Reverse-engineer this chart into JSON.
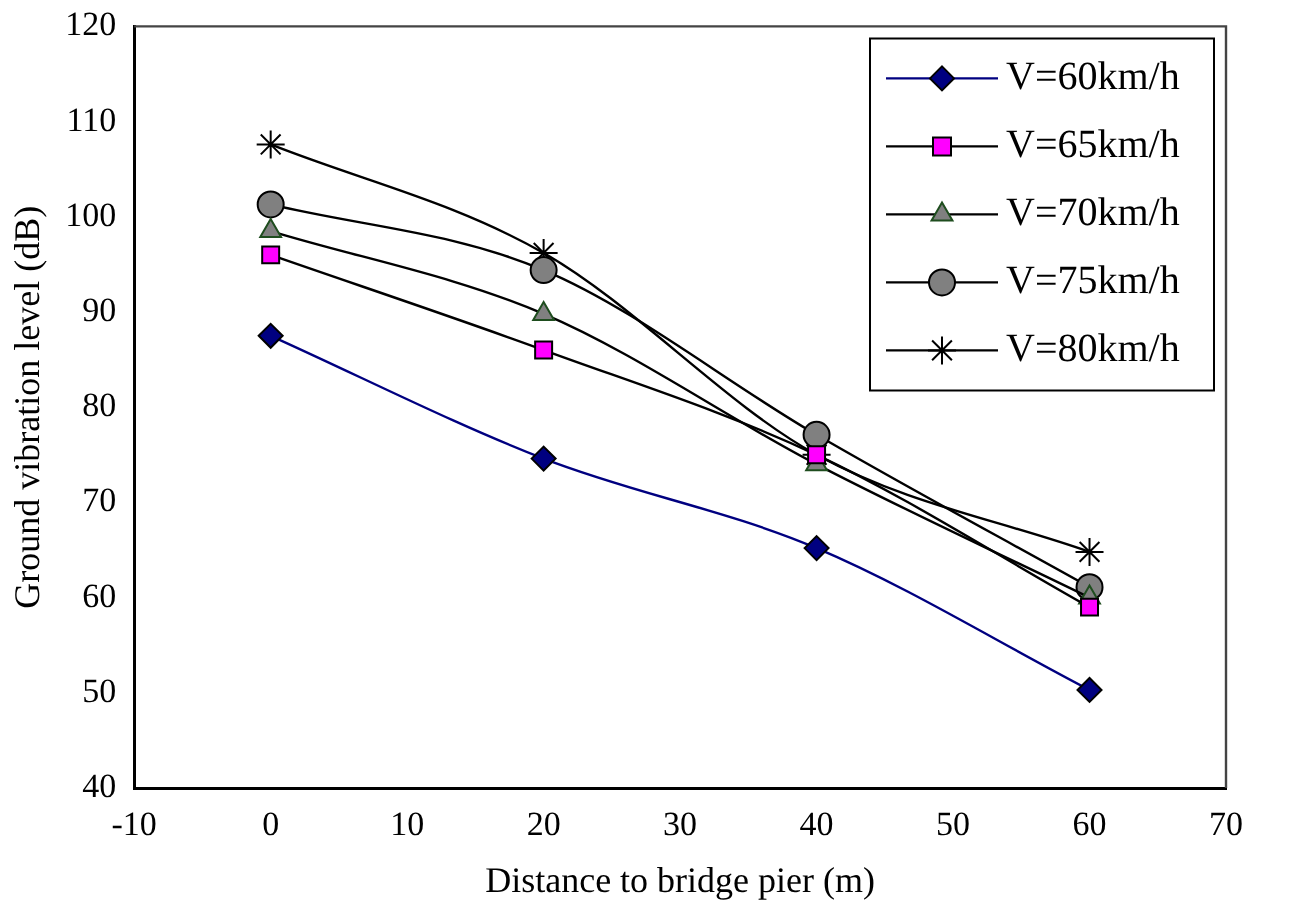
{
  "chart_data": {
    "type": "line",
    "xlabel": "Distance to bridge pier (m)",
    "ylabel": "Ground vibration level (dB)",
    "x": [
      0,
      20,
      40,
      60
    ],
    "series": [
      {
        "name": "V=60km/h",
        "color": "#000080",
        "marker": "diamond",
        "values": [
          87.5,
          74.6,
          65.2,
          50.3
        ]
      },
      {
        "name": "V=65km/h",
        "color": "#ff00ff",
        "marker": "square",
        "values": [
          96,
          86,
          75,
          59
        ]
      },
      {
        "name": "V=70km/h",
        "color": "#808080",
        "marker": "triangle",
        "values": [
          98.5,
          89.8,
          74,
          60
        ]
      },
      {
        "name": "V=75km/h",
        "color": "#808080",
        "marker": "circle",
        "values": [
          101.3,
          94.4,
          77.1,
          61.1
        ]
      },
      {
        "name": "V=80km/h",
        "color": "#000000",
        "marker": "cross",
        "values": [
          107.6,
          96.2,
          75,
          64.8
        ]
      }
    ],
    "xlim": [
      -10,
      70
    ],
    "xticks": [
      -10,
      0,
      10,
      20,
      30,
      40,
      50,
      60,
      70
    ],
    "ylim": [
      40,
      120
    ],
    "yticks": [
      40,
      50,
      60,
      70,
      80,
      90,
      100,
      110,
      120
    ],
    "grid": false,
    "legend": "top right"
  }
}
